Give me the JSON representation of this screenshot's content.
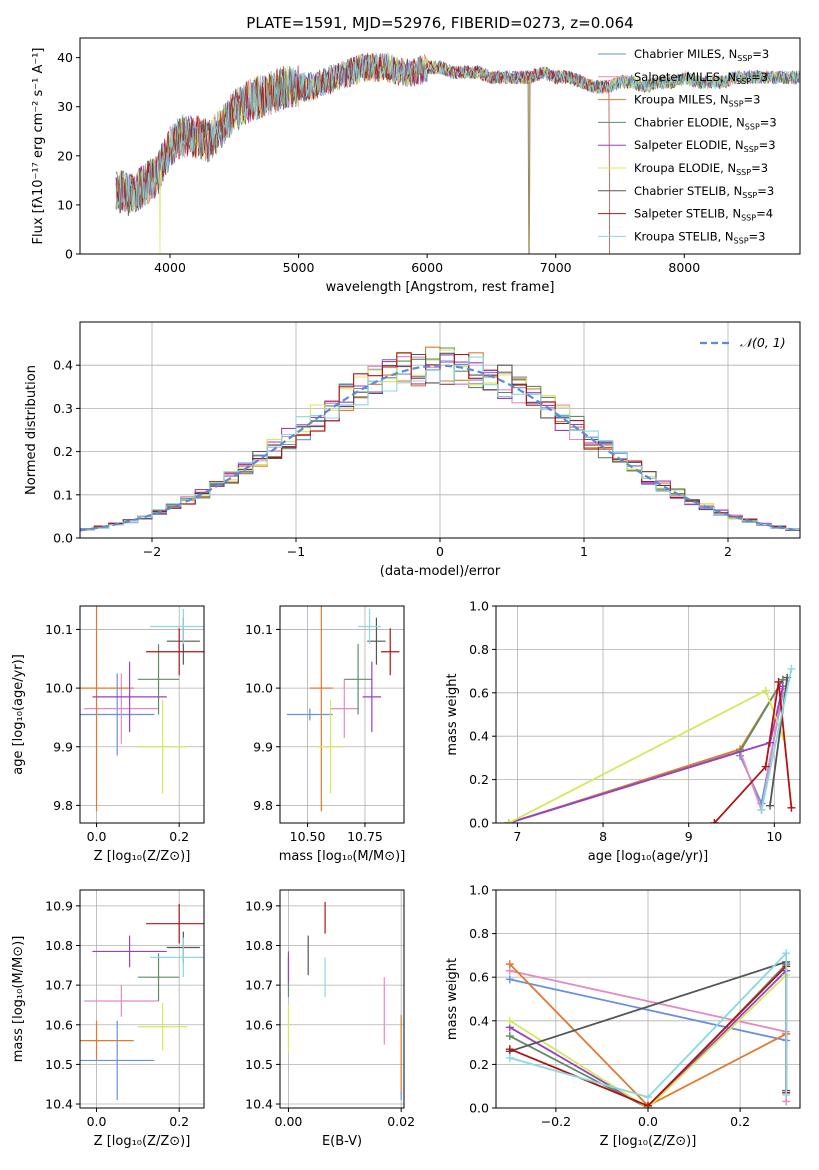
{
  "figure_title": "PLATE=1591, MJD=52976, FIBERID=0273, z=0.064",
  "legend_models": [
    {
      "label": "Chabrier MILES, N",
      "sub": "SSP",
      "suffix": "=3",
      "color": "#6a8fe0"
    },
    {
      "label": "Salpeter MILES, N",
      "sub": "SSP",
      "suffix": "=3",
      "color": "#e58ac0"
    },
    {
      "label": "Kroupa MILES, N",
      "sub": "SSP",
      "suffix": "=3",
      "color": "#e07a2e"
    },
    {
      "label": "Chabrier ELODIE, N",
      "sub": "SSP",
      "suffix": "=3",
      "color": "#5e8c68"
    },
    {
      "label": "Salpeter ELODIE, N",
      "sub": "SSP",
      "suffix": "=3",
      "color": "#9b3ec8"
    },
    {
      "label": "Kroupa ELODIE, N",
      "sub": "SSP",
      "suffix": "=3",
      "color": "#d4e85a"
    },
    {
      "label": "Chabrier STELIB, N",
      "sub": "SSP",
      "suffix": "=3",
      "color": "#555555"
    },
    {
      "label": "Salpeter STELIB, N",
      "sub": "SSP",
      "suffix": "=4",
      "color": "#b01515"
    },
    {
      "label": "Kroupa STELIB, N",
      "sub": "SSP",
      "suffix": "=3",
      "color": "#8ad8e0"
    }
  ],
  "chart_data": [
    {
      "id": "spectrum",
      "type": "line",
      "xlabel": "wavelength [Angstrom, rest frame]",
      "ylabel": "Flux [fλ10⁻¹⁷ erg cm⁻² s⁻¹ A⁻¹]",
      "xlim": [
        3300,
        8900
      ],
      "ylim": [
        0,
        44
      ],
      "xticks": [
        4000,
        5000,
        6000,
        7000,
        8000
      ],
      "yticks": [
        0,
        10,
        20,
        30,
        40
      ],
      "x_range_data": [
        3580,
        9050
      ],
      "anchors": [
        [
          3580,
          13
        ],
        [
          3700,
          12
        ],
        [
          3800,
          14
        ],
        [
          3900,
          16
        ],
        [
          4000,
          22
        ],
        [
          4100,
          24
        ],
        [
          4200,
          24
        ],
        [
          4300,
          23
        ],
        [
          4400,
          26
        ],
        [
          4500,
          29
        ],
        [
          4600,
          31
        ],
        [
          4700,
          32
        ],
        [
          4800,
          33
        ],
        [
          4900,
          34
        ],
        [
          5000,
          34
        ],
        [
          5100,
          34
        ],
        [
          5200,
          35
        ],
        [
          5300,
          36
        ],
        [
          5400,
          37
        ],
        [
          5500,
          38
        ],
        [
          5600,
          38
        ],
        [
          5700,
          38
        ],
        [
          5800,
          37
        ],
        [
          5900,
          37
        ],
        [
          6000,
          38
        ],
        [
          6100,
          38
        ],
        [
          6200,
          37
        ],
        [
          6300,
          37
        ],
        [
          6400,
          37
        ],
        [
          6500,
          36
        ],
        [
          6600,
          36
        ],
        [
          6700,
          36
        ],
        [
          6800,
          36
        ],
        [
          6900,
          37
        ],
        [
          7000,
          36
        ],
        [
          7100,
          36
        ],
        [
          7200,
          35
        ],
        [
          7300,
          34
        ],
        [
          7400,
          34
        ],
        [
          7500,
          35
        ],
        [
          7600,
          35
        ],
        [
          7700,
          34
        ],
        [
          7800,
          35
        ],
        [
          7900,
          35
        ],
        [
          8000,
          36
        ],
        [
          8100,
          35
        ],
        [
          8200,
          35
        ],
        [
          8300,
          35
        ],
        [
          8400,
          36
        ],
        [
          8500,
          36
        ],
        [
          8600,
          36
        ],
        [
          9050,
          36
        ]
      ],
      "dropouts": [
        [
          3920,
          "Kroupa ELODIE",
          0
        ],
        [
          6790,
          "Chabrier ELODIE",
          0
        ],
        [
          6795,
          "Kroupa MILES",
          0
        ],
        [
          7410,
          "Kroupa MILES",
          0
        ],
        [
          7420,
          "Salpeter STELIB",
          0
        ]
      ]
    },
    {
      "id": "residuals",
      "type": "step",
      "xlabel": "(data-model)/error",
      "ylabel": "Normed distribution",
      "xlim": [
        -2.5,
        2.5
      ],
      "ylim": [
        0,
        0.5
      ],
      "xticks": [
        -2,
        -1,
        0,
        1,
        2
      ],
      "yticks": [
        0.0,
        0.1,
        0.2,
        0.3,
        0.4
      ],
      "bin_width": 0.1,
      "bin_start": -2.5,
      "legend": "𝒩(0, 1)",
      "normal_curve": {
        "mean": 0,
        "std": 1,
        "color": "#5b8bd6"
      }
    },
    {
      "id": "age_vs_Z",
      "type": "errorbar",
      "xlabel": "Z [log₁₀(Z/Z⊙)]",
      "ylabel": "age [log₁₀(age/yr)]",
      "xlim": [
        -0.04,
        0.26
      ],
      "ylim": [
        9.77,
        10.14
      ],
      "xticks": [
        0.0,
        0.2
      ],
      "yticks": [
        9.8,
        9.9,
        10.0,
        10.1
      ],
      "points": [
        {
          "model": "Chabrier MILES",
          "x": 0.05,
          "xe": 0.09,
          "y": 9.955,
          "ye": 0.07
        },
        {
          "model": "Salpeter MILES",
          "x": 0.06,
          "xe": 0.09,
          "y": 9.965,
          "ye": 0.06
        },
        {
          "model": "Kroupa MILES",
          "x": 0.0,
          "xe": 0.09,
          "y": 10.0,
          "ye": 0.21
        },
        {
          "model": "Chabrier ELODIE",
          "x": 0.15,
          "xe": 0.05,
          "y": 10.015,
          "ye": 0.06
        },
        {
          "model": "Salpeter ELODIE",
          "x": 0.08,
          "xe": 0.09,
          "y": 9.985,
          "ye": 0.06
        },
        {
          "model": "Kroupa ELODIE",
          "x": 0.16,
          "xe": 0.06,
          "y": 9.9,
          "ye": 0.08
        },
        {
          "model": "Chabrier STELIB",
          "x": 0.21,
          "xe": 0.04,
          "y": 10.08,
          "ye": 0.04
        },
        {
          "model": "Salpeter STELIB",
          "x": 0.2,
          "xe": 0.08,
          "y": 10.062,
          "ye": 0.04
        },
        {
          "model": "Kroupa STELIB",
          "x": 0.21,
          "xe": 0.08,
          "y": 10.105,
          "ye": 0.03
        }
      ]
    },
    {
      "id": "age_vs_mass",
      "type": "errorbar",
      "xlabel": "mass [log₁₀(M/M⊙)]",
      "ylabel": "",
      "xlim": [
        10.38,
        10.92
      ],
      "ylim": [
        9.77,
        10.14
      ],
      "xticks": [
        10.5,
        10.75
      ],
      "yticks": [
        9.8,
        9.9,
        10.0,
        10.1
      ],
      "points": [
        {
          "model": "Chabrier MILES",
          "x": 10.51,
          "xe": 0.1,
          "y": 9.955,
          "ye": 0.01
        },
        {
          "model": "Salpeter MILES",
          "x": 10.66,
          "xe": 0.06,
          "y": 9.965,
          "ye": 0.05
        },
        {
          "model": "Kroupa MILES",
          "x": 10.56,
          "xe": 0.05,
          "y": 10.0,
          "ye": 0.21
        },
        {
          "model": "Chabrier ELODIE",
          "x": 10.72,
          "xe": 0.06,
          "y": 10.015,
          "ye": 0.06
        },
        {
          "model": "Salpeter ELODIE",
          "x": 10.78,
          "xe": 0.04,
          "y": 9.985,
          "ye": 0.06
        },
        {
          "model": "Kroupa ELODIE",
          "x": 10.6,
          "xe": 0.06,
          "y": 9.9,
          "ye": 0.08
        },
        {
          "model": "Chabrier STELIB",
          "x": 10.8,
          "xe": 0.04,
          "y": 10.08,
          "ye": 0.04
        },
        {
          "model": "Salpeter STELIB",
          "x": 10.86,
          "xe": 0.04,
          "y": 10.062,
          "ye": 0.04
        },
        {
          "model": "Kroupa STELIB",
          "x": 10.77,
          "xe": 0.05,
          "y": 10.105,
          "ye": 0.03
        }
      ]
    },
    {
      "id": "weight_vs_age",
      "type": "line",
      "xlabel": "age [log₁₀(age/yr)]",
      "ylabel": "mass weight",
      "xlim": [
        6.75,
        10.3
      ],
      "ylim": [
        0,
        1.0
      ],
      "xticks": [
        7,
        8,
        9,
        10
      ],
      "yticks": [
        0.0,
        0.2,
        0.4,
        0.6,
        0.8,
        1.0
      ],
      "series": [
        {
          "model": "Chabrier MILES",
          "points": [
            [
              9.6,
              0.31
            ],
            [
              9.85,
              0.09
            ],
            [
              10.1,
              0.6
            ]
          ]
        },
        {
          "model": "Salpeter MILES",
          "points": [
            [
              9.6,
              0.33
            ],
            [
              9.85,
              0.06
            ],
            [
              10.1,
              0.62
            ]
          ]
        },
        {
          "model": "Kroupa MILES",
          "points": [
            [
              6.9,
              0.0
            ],
            [
              9.6,
              0.34
            ],
            [
              10.1,
              0.66
            ]
          ]
        },
        {
          "model": "Chabrier ELODIE",
          "points": [
            [
              6.9,
              0.0
            ],
            [
              9.6,
              0.33
            ],
            [
              10.1,
              0.66
            ]
          ]
        },
        {
          "model": "Salpeter ELODIE",
          "points": [
            [
              6.9,
              0.0
            ],
            [
              9.95,
              0.37
            ],
            [
              10.1,
              0.63
            ]
          ]
        },
        {
          "model": "Kroupa ELODIE",
          "points": [
            [
              6.9,
              0.0
            ],
            [
              9.9,
              0.61
            ],
            [
              10.1,
              0.4
            ]
          ]
        },
        {
          "model": "Chabrier STELIB",
          "points": [
            [
              9.95,
              0.08
            ],
            [
              10.15,
              0.67
            ]
          ]
        },
        {
          "model": "Salpeter STELIB",
          "points": [
            [
              9.3,
              0.0
            ],
            [
              9.9,
              0.26
            ],
            [
              10.05,
              0.65
            ],
            [
              10.2,
              0.07
            ]
          ]
        },
        {
          "model": "Kroupa STELIB",
          "points": [
            [
              9.85,
              0.06
            ],
            [
              10.2,
              0.71
            ]
          ]
        }
      ]
    },
    {
      "id": "mass_vs_Z",
      "type": "errorbar",
      "xlabel": "Z [log₁₀(Z/Z⊙)]",
      "ylabel": "mass [log₁₀(M/M⊙)]",
      "xlim": [
        -0.04,
        0.26
      ],
      "ylim": [
        10.39,
        10.94
      ],
      "xticks": [
        0.0,
        0.2
      ],
      "yticks": [
        10.4,
        10.5,
        10.6,
        10.7,
        10.8,
        10.9
      ],
      "points": [
        {
          "model": "Chabrier MILES",
          "x": 0.05,
          "xe": 0.09,
          "y": 10.51,
          "ye": 0.1
        },
        {
          "model": "Salpeter MILES",
          "x": 0.06,
          "xe": 0.09,
          "y": 10.66,
          "ye": 0.04
        },
        {
          "model": "Kroupa MILES",
          "x": 0.0,
          "xe": 0.09,
          "y": 10.56,
          "ye": 0.05
        },
        {
          "model": "Chabrier ELODIE",
          "x": 0.15,
          "xe": 0.05,
          "y": 10.72,
          "ye": 0.06
        },
        {
          "model": "Salpeter ELODIE",
          "x": 0.08,
          "xe": 0.09,
          "y": 10.785,
          "ye": 0.04
        },
        {
          "model": "Kroupa ELODIE",
          "x": 0.16,
          "xe": 0.06,
          "y": 10.595,
          "ye": 0.06
        },
        {
          "model": "Chabrier STELIB",
          "x": 0.21,
          "xe": 0.04,
          "y": 10.795,
          "ye": 0.04
        },
        {
          "model": "Salpeter STELIB",
          "x": 0.2,
          "xe": 0.08,
          "y": 10.855,
          "ye": 0.05
        },
        {
          "model": "Kroupa STELIB",
          "x": 0.21,
          "xe": 0.08,
          "y": 10.77,
          "ye": 0.05
        }
      ]
    },
    {
      "id": "mass_vs_EBV",
      "type": "errorbar",
      "xlabel": "E(B-V)",
      "ylabel": "",
      "xlim": [
        -0.0015,
        0.0205
      ],
      "ylim": [
        10.39,
        10.94
      ],
      "xticks": [
        0.0,
        0.02
      ],
      "yticks": [
        10.4,
        10.5,
        10.6,
        10.7,
        10.8,
        10.9
      ],
      "points": [
        {
          "model": "Kroupa ELODIE",
          "x": 0.0,
          "xe": 0,
          "y": 10.59,
          "ye": 0.06
        },
        {
          "model": "Chabrier ELODIE",
          "x": 0.0,
          "xe": 0,
          "y": 10.72,
          "ye": 0.05
        },
        {
          "model": "Salpeter ELODIE",
          "x": 0.0,
          "xe": 0,
          "y": 10.745,
          "ye": 0.04
        },
        {
          "model": "Chabrier STELIB",
          "x": 0.0035,
          "xe": 0,
          "y": 10.775,
          "ye": 0.05
        },
        {
          "model": "Salpeter STELIB",
          "x": 0.0065,
          "xe": 0,
          "y": 10.87,
          "ye": 0.04
        },
        {
          "model": "Kroupa STELIB",
          "x": 0.0065,
          "xe": 0,
          "y": 10.72,
          "ye": 0.05
        },
        {
          "model": "Salpeter MILES",
          "x": 0.017,
          "xe": 0,
          "y": 10.635,
          "ye": 0.085
        },
        {
          "model": "Kroupa MILES",
          "x": 0.02,
          "xe": 0,
          "y": 10.525,
          "ye": 0.1
        },
        {
          "model": "Chabrier MILES",
          "x": 0.02,
          "xe": 0,
          "y": 10.42,
          "ye": 0.01
        }
      ]
    },
    {
      "id": "weight_vs_Z",
      "type": "line",
      "xlabel": "Z [log₁₀(Z/Z⊙)]",
      "ylabel": "mass weight",
      "xlim": [
        -0.33,
        0.33
      ],
      "ylim": [
        0,
        1.0
      ],
      "xticks": [
        -0.2,
        0.0,
        0.2
      ],
      "yticks": [
        0.0,
        0.2,
        0.4,
        0.6,
        0.8,
        1.0
      ],
      "series": [
        {
          "model": "Chabrier MILES",
          "points": [
            [
              -0.3,
              0.59
            ],
            [
              0.3,
              0.31
            ]
          ]
        },
        {
          "model": "Salpeter MILES",
          "points": [
            [
              -0.3,
              0.63
            ],
            [
              0.3,
              0.35
            ],
            [
              0.3,
              0.03
            ]
          ]
        },
        {
          "model": "Kroupa MILES",
          "points": [
            [
              -0.3,
              0.66
            ],
            [
              0.0,
              0.01
            ],
            [
              0.3,
              0.34
            ]
          ]
        },
        {
          "model": "Chabrier ELODIE",
          "points": [
            [
              -0.3,
              0.33
            ],
            [
              0.0,
              0.0
            ],
            [
              0.3,
              0.66
            ]
          ]
        },
        {
          "model": "Salpeter ELODIE",
          "points": [
            [
              -0.3,
              0.37
            ],
            [
              0.0,
              0.0
            ],
            [
              0.3,
              0.63
            ]
          ]
        },
        {
          "model": "Kroupa ELODIE",
          "points": [
            [
              -0.3,
              0.4
            ],
            [
              0.0,
              0.0
            ],
            [
              0.3,
              0.61
            ]
          ]
        },
        {
          "model": "Chabrier STELIB",
          "points": [
            [
              -0.3,
              0.26
            ],
            [
              0.3,
              0.67
            ],
            [
              0.3,
              0.08
            ]
          ]
        },
        {
          "model": "Salpeter STELIB",
          "points": [
            [
              -0.3,
              0.27
            ],
            [
              0.0,
              0.01
            ],
            [
              0.3,
              0.65
            ],
            [
              0.3,
              0.07
            ]
          ]
        },
        {
          "model": "Kroupa STELIB",
          "points": [
            [
              -0.3,
              0.23
            ],
            [
              0.0,
              0.05
            ],
            [
              0.3,
              0.71
            ],
            [
              0.3,
              0.06
            ]
          ]
        }
      ]
    }
  ]
}
